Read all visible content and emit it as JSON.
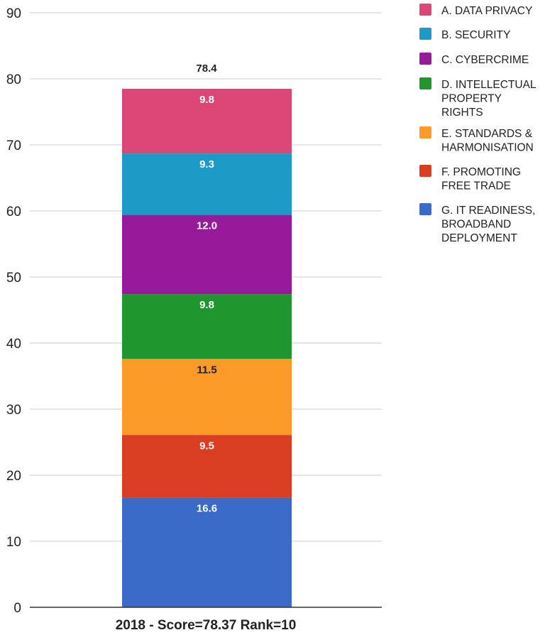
{
  "chart_data": {
    "type": "bar",
    "stacked": true,
    "categories": [
      "2018 - Score=78.37 Rank=10"
    ],
    "total_label": "78.4",
    "ylim": [
      0,
      90
    ],
    "yticks": [
      0,
      10,
      20,
      30,
      40,
      50,
      60,
      70,
      80,
      90
    ],
    "grid": true,
    "legend_position": "right",
    "series": [
      {
        "name": "G. IT READINESS, BROADBAND DEPLOYMENT",
        "values": [
          16.6
        ],
        "label": "16.6",
        "color": "#3a6bc9",
        "label_color": "#ffffff"
      },
      {
        "name": "F. PROMOTING FREE TRADE",
        "values": [
          9.5
        ],
        "label": "9.5",
        "color": "#d93d22",
        "label_color": "#ffffff"
      },
      {
        "name": "E. STANDARDS & HARMONISATION",
        "values": [
          11.5
        ],
        "label": "11.5",
        "color": "#fb9a27",
        "label_color": "#222222"
      },
      {
        "name": "D. INTELLECTUAL PROPERTY RIGHTS",
        "values": [
          9.8
        ],
        "label": "9.8",
        "color": "#1f962e",
        "label_color": "#ffffff"
      },
      {
        "name": "C. CYBERCRIME",
        "values": [
          12.0
        ],
        "label": "12.0",
        "color": "#961a9a",
        "label_color": "#ffffff"
      },
      {
        "name": "B. SECURITY",
        "values": [
          9.3
        ],
        "label": "9.3",
        "color": "#1e9ac6",
        "label_color": "#ffffff"
      },
      {
        "name": "A. DATA PRIVACY",
        "values": [
          9.8
        ],
        "label": "9.8",
        "color": "#dc4677",
        "label_color": "#ffffff"
      }
    ],
    "legend": [
      {
        "lines": [
          "A. DATA PRIVACY"
        ],
        "color": "#dc4677"
      },
      {
        "lines": [
          "B. SECURITY"
        ],
        "color": "#1e9ac6"
      },
      {
        "lines": [
          "C. CYBERCRIME"
        ],
        "color": "#961a9a"
      },
      {
        "lines": [
          "D. INTELLECTUAL",
          "PROPERTY",
          "RIGHTS"
        ],
        "color": "#1f962e"
      },
      {
        "lines": [
          "E. STANDARDS &",
          "HARMONISATION"
        ],
        "color": "#fb9a27"
      },
      {
        "lines": [
          "F. PROMOTING",
          "FREE TRADE"
        ],
        "color": "#d93d22"
      },
      {
        "lines": [
          "G. IT READINESS,",
          "BROADBAND",
          "DEPLOYMENT"
        ],
        "color": "#3a6bc9"
      }
    ]
  }
}
